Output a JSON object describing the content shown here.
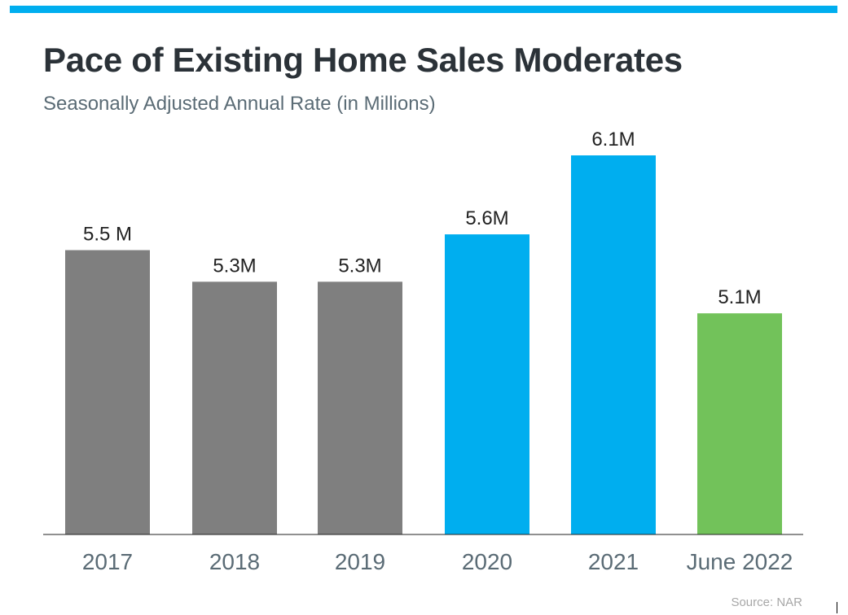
{
  "header": {
    "title": "Pace of Existing Home Sales Moderates",
    "subtitle": "Seasonally Adjusted Annual Rate (in Millions)"
  },
  "source": "Source: NAR",
  "colors": {
    "accent_bar": "#00aeef",
    "gray": "#7f7f7f",
    "blue": "#00aeef",
    "green": "#72c25a"
  },
  "chart_data": {
    "type": "bar",
    "title": "Pace of Existing Home Sales Moderates",
    "subtitle": "Seasonally Adjusted Annual Rate (in Millions)",
    "categories": [
      "2017",
      "2018",
      "2019",
      "2020",
      "2021",
      "June 2022"
    ],
    "values": [
      5.5,
      5.3,
      5.3,
      5.6,
      6.1,
      5.1
    ],
    "data_labels": [
      "5.5 M",
      "5.3M",
      "5.3M",
      "5.6M",
      "6.1M",
      "5.1M"
    ],
    "bar_colors": [
      "#7f7f7f",
      "#7f7f7f",
      "#7f7f7f",
      "#00aeef",
      "#00aeef",
      "#72c25a"
    ],
    "xlabel": "",
    "ylabel": "",
    "ylim": [
      3.7,
      6.1
    ],
    "grid": false,
    "legend": "none"
  }
}
